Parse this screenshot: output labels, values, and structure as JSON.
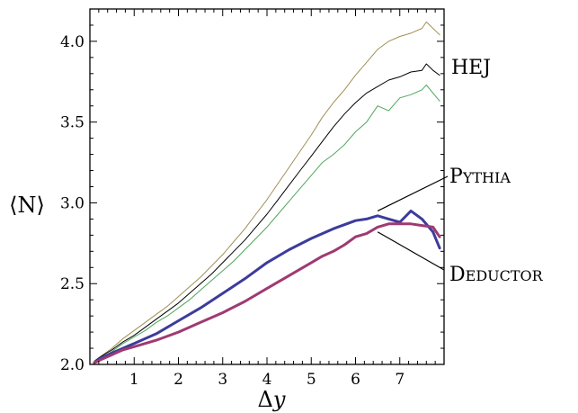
{
  "chart_data": {
    "type": "line",
    "xlabel_symbol": "Δy",
    "ylabel": "⟨N⟩",
    "xlim": [
      0,
      8
    ],
    "ylim": [
      2.0,
      4.2
    ],
    "x_ticks": [
      1,
      2,
      3,
      4,
      5,
      6,
      7
    ],
    "y_ticks": [
      2.0,
      2.5,
      3.0,
      3.5,
      4.0
    ],
    "y_tick_labels": [
      "2.0",
      "2.5",
      "3.0",
      "3.5",
      "4.0"
    ],
    "annotations": [
      {
        "label": "HEJ",
        "series": [
          "HEJ upper",
          "HEJ",
          "HEJ lower"
        ]
      },
      {
        "label_cap": "P",
        "label_sc": "YTHIA",
        "series": [
          "Pythia"
        ]
      },
      {
        "label_cap": "D",
        "label_sc": "EDUCTOR",
        "series": [
          "Deductor"
        ]
      }
    ],
    "series": [
      {
        "color": "#a08f55",
        "width": 1.0,
        "x": [
          0.1,
          0.25,
          0.5,
          0.75,
          1.0,
          1.25,
          1.5,
          1.75,
          2.0,
          2.25,
          2.5,
          2.75,
          3.0,
          3.25,
          3.5,
          3.75,
          4.0,
          4.25,
          4.5,
          4.75,
          5.0,
          5.25,
          5.5,
          5.75,
          6.0,
          6.25,
          6.5,
          6.75,
          7.0,
          7.25,
          7.5,
          7.6,
          7.75,
          7.9
        ],
        "y": [
          2.02,
          2.05,
          2.1,
          2.16,
          2.21,
          2.26,
          2.31,
          2.36,
          2.42,
          2.48,
          2.54,
          2.61,
          2.68,
          2.76,
          2.84,
          2.93,
          3.02,
          3.12,
          3.22,
          3.32,
          3.42,
          3.53,
          3.62,
          3.7,
          3.79,
          3.87,
          3.95,
          4.0,
          4.03,
          4.05,
          4.08,
          4.12,
          4.08,
          4.04
        ]
      },
      {
        "color": "#000000",
        "width": 1.0,
        "x": [
          0.1,
          0.25,
          0.5,
          0.75,
          1.0,
          1.25,
          1.5,
          1.75,
          2.0,
          2.25,
          2.5,
          2.75,
          3.0,
          3.25,
          3.5,
          3.75,
          4.0,
          4.25,
          4.5,
          4.75,
          5.0,
          5.25,
          5.5,
          5.75,
          6.0,
          6.25,
          6.5,
          6.75,
          7.0,
          7.25,
          7.5,
          7.6,
          7.75,
          7.9
        ],
        "y": [
          2.02,
          2.05,
          2.09,
          2.14,
          2.18,
          2.23,
          2.28,
          2.33,
          2.38,
          2.44,
          2.5,
          2.56,
          2.63,
          2.7,
          2.77,
          2.85,
          2.93,
          3.02,
          3.11,
          3.2,
          3.29,
          3.38,
          3.47,
          3.55,
          3.62,
          3.68,
          3.72,
          3.76,
          3.78,
          3.81,
          3.82,
          3.86,
          3.82,
          3.79
        ]
      },
      {
        "color": "#4da65a",
        "width": 1.0,
        "x": [
          0.1,
          0.25,
          0.5,
          0.75,
          1.0,
          1.25,
          1.5,
          1.75,
          2.0,
          2.25,
          2.5,
          2.75,
          3.0,
          3.25,
          3.5,
          3.75,
          4.0,
          4.25,
          4.5,
          4.75,
          5.0,
          5.25,
          5.5,
          5.75,
          6.0,
          6.25,
          6.5,
          6.75,
          7.0,
          7.25,
          7.5,
          7.6,
          7.75,
          7.9
        ],
        "y": [
          2.02,
          2.04,
          2.08,
          2.13,
          2.17,
          2.21,
          2.26,
          2.3,
          2.35,
          2.4,
          2.46,
          2.52,
          2.58,
          2.64,
          2.71,
          2.78,
          2.85,
          2.93,
          3.01,
          3.09,
          3.17,
          3.25,
          3.3,
          3.36,
          3.44,
          3.5,
          3.6,
          3.57,
          3.65,
          3.67,
          3.7,
          3.73,
          3.68,
          3.63
        ]
      },
      {
        "color": "#3c3c9c",
        "width": 3.0,
        "x": [
          0.1,
          0.25,
          0.5,
          0.75,
          1.0,
          1.5,
          2.0,
          2.5,
          3.0,
          3.5,
          4.0,
          4.5,
          5.0,
          5.5,
          6.0,
          6.25,
          6.5,
          6.75,
          7.0,
          7.25,
          7.5,
          7.75,
          7.9
        ],
        "y": [
          2.01,
          2.04,
          2.07,
          2.1,
          2.13,
          2.19,
          2.27,
          2.35,
          2.44,
          2.53,
          2.63,
          2.71,
          2.78,
          2.84,
          2.89,
          2.9,
          2.92,
          2.9,
          2.88,
          2.95,
          2.9,
          2.82,
          2.72
        ]
      },
      {
        "color": "#9e3a73",
        "width": 3.0,
        "x": [
          0.1,
          0.25,
          0.5,
          0.75,
          1.0,
          1.5,
          2.0,
          2.5,
          3.0,
          3.5,
          4.0,
          4.5,
          5.0,
          5.25,
          5.5,
          5.75,
          6.0,
          6.25,
          6.5,
          6.75,
          7.0,
          7.25,
          7.5,
          7.75,
          7.9
        ],
        "y": [
          2.01,
          2.03,
          2.06,
          2.09,
          2.11,
          2.15,
          2.2,
          2.26,
          2.32,
          2.39,
          2.47,
          2.55,
          2.63,
          2.67,
          2.7,
          2.74,
          2.79,
          2.81,
          2.85,
          2.87,
          2.87,
          2.87,
          2.86,
          2.85,
          2.79
        ]
      }
    ]
  }
}
